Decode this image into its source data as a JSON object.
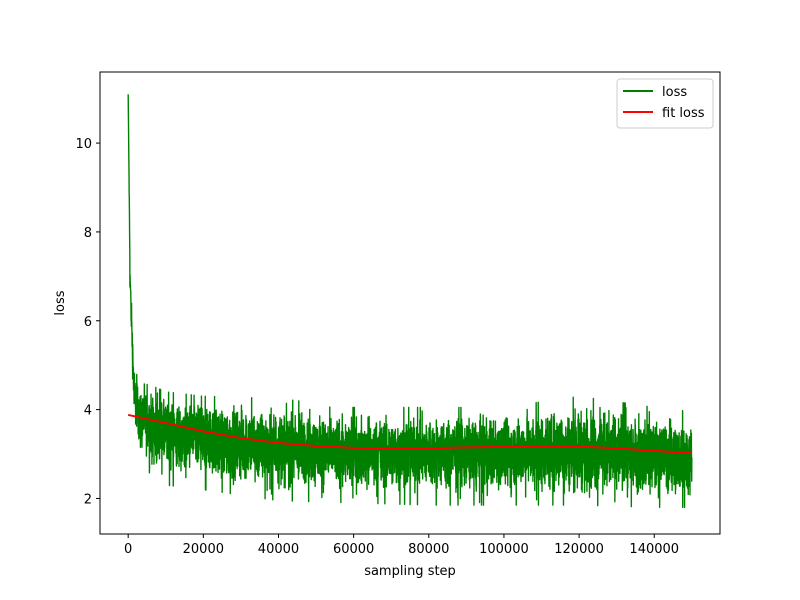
{
  "chart_data": {
    "type": "line",
    "title": "",
    "xlabel": "sampling step",
    "ylabel": "loss",
    "xlim": [
      -7500,
      157500
    ],
    "ylim": [
      1.2,
      11.6
    ],
    "xticks": [
      0,
      20000,
      40000,
      60000,
      80000,
      100000,
      120000,
      140000
    ],
    "xtick_labels": [
      "0",
      "20000",
      "40000",
      "60000",
      "80000",
      "100000",
      "120000",
      "140000"
    ],
    "yticks": [
      2,
      4,
      6,
      8,
      10
    ],
    "ytick_labels": [
      "2",
      "4",
      "6",
      "8",
      "10"
    ],
    "grid": false,
    "legend_position": "top-right",
    "series": [
      {
        "name": "loss",
        "color": "#008000",
        "style": "noisy",
        "peak": 11.1,
        "envelope": {
          "x": [
            0,
            500,
            1500,
            3000,
            6000,
            10000,
            20000,
            40000,
            60000,
            80000,
            100000,
            120000,
            140000,
            150000
          ],
          "center": [
            11.1,
            7.0,
            4.6,
            3.95,
            3.7,
            3.5,
            3.35,
            3.15,
            3.05,
            3.05,
            3.05,
            3.1,
            3.0,
            2.95
          ],
          "upper": [
            11.1,
            7.3,
            5.0,
            4.6,
            4.55,
            4.4,
            4.3,
            4.25,
            4.05,
            4.05,
            4.05,
            4.3,
            4.05,
            3.95
          ],
          "lower": [
            11.1,
            6.4,
            3.6,
            2.8,
            2.55,
            2.3,
            2.2,
            1.95,
            1.9,
            1.85,
            1.85,
            1.85,
            1.8,
            1.8
          ]
        }
      },
      {
        "name": "fit loss",
        "color": "#ff0000",
        "style": "smooth",
        "x": [
          0,
          10000,
          20000,
          30000,
          40000,
          50000,
          60000,
          70000,
          80000,
          90000,
          100000,
          110000,
          120000,
          130000,
          140000,
          150000
        ],
        "values": [
          3.88,
          3.7,
          3.51,
          3.36,
          3.25,
          3.18,
          3.14,
          3.13,
          3.13,
          3.15,
          3.16,
          3.18,
          3.17,
          3.13,
          3.07,
          3.02
        ]
      }
    ]
  }
}
